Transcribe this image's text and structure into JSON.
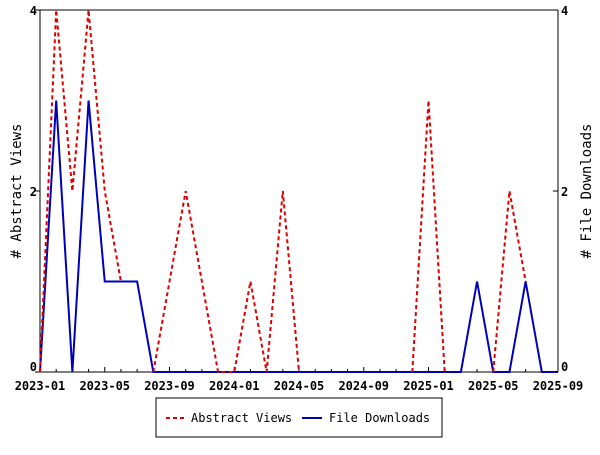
{
  "chart_data": {
    "type": "line",
    "title": "",
    "xlabel": "",
    "ylabel_left": "# Abstract Views",
    "ylabel_right": "# File Downloads",
    "ylim_left": [
      0,
      4
    ],
    "ylim_right": [
      0,
      4
    ],
    "yticks_left": [
      "0",
      "2",
      "4"
    ],
    "yticks_right": [
      "0",
      "2",
      "4"
    ],
    "x_start": "2023-01",
    "x_end": "2025-09",
    "xtick_labels": [
      "2023-01",
      "2023-05",
      "2023-09",
      "2024-01",
      "2024-05",
      "2024-09",
      "2025-01",
      "2025-05",
      "2025-09"
    ],
    "x": [
      "2023-01",
      "2023-02",
      "2023-03",
      "2023-04",
      "2023-05",
      "2023-06",
      "2023-07",
      "2023-08",
      "2023-09",
      "2023-10",
      "2023-11",
      "2023-12",
      "2024-01",
      "2024-02",
      "2024-03",
      "2024-04",
      "2024-05",
      "2024-06",
      "2024-07",
      "2024-08",
      "2024-09",
      "2024-10",
      "2024-11",
      "2024-12",
      "2025-01",
      "2025-02",
      "2025-03",
      "2025-04",
      "2025-05",
      "2025-06",
      "2025-07",
      "2025-08",
      "2025-09"
    ],
    "series": [
      {
        "name": "Abstract Views",
        "color": "#dd0000",
        "dash": true,
        "values": [
          0,
          4,
          2,
          4,
          2,
          1,
          null,
          0,
          1,
          2,
          1,
          0,
          0,
          1,
          0,
          2,
          0,
          null,
          null,
          null,
          null,
          null,
          null,
          0,
          3,
          0,
          null,
          null,
          0,
          2,
          1,
          null,
          null
        ]
      },
      {
        "name": "File Downloads",
        "color": "#0000bb",
        "dash": false,
        "values": [
          0,
          3,
          0,
          3,
          1,
          1,
          1,
          0,
          0,
          0,
          0,
          0,
          0,
          0,
          0,
          0,
          0,
          0,
          0,
          0,
          0,
          0,
          0,
          0,
          0,
          0,
          0,
          1,
          0,
          0,
          1,
          0,
          0
        ]
      }
    ],
    "legend": "bottom",
    "grid": false
  }
}
